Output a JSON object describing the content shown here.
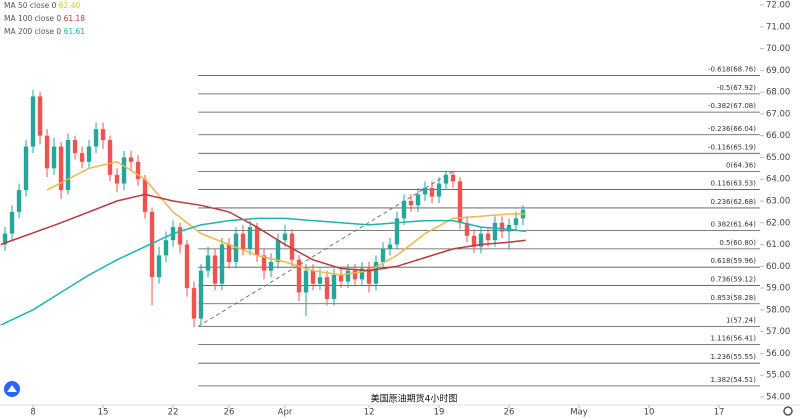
{
  "chart_data": {
    "type": "candlestick",
    "title": "美国原油期货4小时图",
    "xlim": [
      -2.36,
      51.93
    ],
    "ylim": [
      53.63,
      72.23
    ],
    "xticks": [
      {
        "value": 0,
        "label": "8"
      },
      {
        "value": 5,
        "label": "15"
      },
      {
        "value": 10,
        "label": "22"
      },
      {
        "value": 14,
        "label": "26"
      },
      {
        "value": 18,
        "label": "Apr"
      },
      {
        "value": 24,
        "label": "12"
      },
      {
        "value": 29,
        "label": "19"
      },
      {
        "value": 34,
        "label": "26"
      },
      {
        "value": 39,
        "label": "May"
      },
      {
        "value": 44,
        "label": "10"
      },
      {
        "value": 49,
        "label": "17"
      }
    ],
    "yticks": [
      {
        "value": 54,
        "label": "54.00"
      },
      {
        "value": 55,
        "label": "55.00"
      },
      {
        "value": 56,
        "label": "56.00"
      },
      {
        "value": 57,
        "label": "57.00"
      },
      {
        "value": 58,
        "label": "58.00"
      },
      {
        "value": 59,
        "label": "59.00"
      },
      {
        "value": 60,
        "label": "60.00"
      },
      {
        "value": 61,
        "label": "61.00"
      },
      {
        "value": 62,
        "label": "62.00"
      },
      {
        "value": 63,
        "label": "63.00"
      },
      {
        "value": 64,
        "label": "64.00"
      },
      {
        "value": 65,
        "label": "65.00"
      },
      {
        "value": 66,
        "label": "66.00"
      },
      {
        "value": 67,
        "label": "67.00"
      },
      {
        "value": 68,
        "label": "68.00"
      },
      {
        "value": 69,
        "label": "69.00"
      },
      {
        "value": 70,
        "label": "70.00"
      },
      {
        "value": 71,
        "label": "71.00"
      },
      {
        "value": 72,
        "label": "72.00"
      }
    ],
    "up_color": "#26a69a",
    "down_color": "#ef5350",
    "candles": {
      "x": [
        -2,
        -1.5,
        -1,
        -0.5,
        0,
        0.5,
        1,
        1.5,
        2,
        2.5,
        3,
        3.5,
        4,
        4.5,
        5,
        5.5,
        6,
        6.5,
        7,
        7.5,
        8,
        8.5,
        9,
        9.5,
        10,
        10.5,
        11,
        11.5,
        12,
        12.5,
        13,
        13.5,
        14,
        14.5,
        15,
        15.5,
        16,
        16.5,
        17,
        17.5,
        18,
        18.5,
        19,
        19.5,
        20,
        20.5,
        21,
        21.5,
        22,
        22.5,
        23,
        23.5,
        24,
        24.5,
        25,
        25.5,
        26,
        26.5,
        27,
        27.5,
        28,
        28.5,
        29,
        29.5,
        30,
        30.5,
        31,
        31.5,
        32,
        32.5,
        33,
        33.5,
        34,
        34.5,
        35
      ],
      "open": [
        61.0,
        61.5,
        62.5,
        63.5,
        65.5,
        67.8,
        66.0,
        64.5,
        65.5,
        63.5,
        65.8,
        65.2,
        64.8,
        65.5,
        66.3,
        65.8,
        64.2,
        63.8,
        65.0,
        64.8,
        64.0,
        62.5,
        59.5,
        60.5,
        61.2,
        61.8,
        61.0,
        59.0,
        57.6,
        59.8,
        60.5,
        59.2,
        61.0,
        60.2,
        61.5,
        60.8,
        61.8,
        60.5,
        59.8,
        60.2,
        61.2,
        61.5,
        60.3,
        58.8,
        59.8,
        59.2,
        59.5,
        58.5,
        59.6,
        59.3,
        59.8,
        59.4,
        59.9,
        59.2,
        60.2,
        60.8,
        61.0,
        62.2,
        63.0,
        62.8,
        63.3,
        63.6,
        63.2,
        63.8,
        64.2,
        63.9,
        62.0,
        61.4,
        60.9,
        61.5,
        61.2,
        62.0,
        61.6,
        61.9,
        62.2
      ],
      "high": [
        61.8,
        62.8,
        63.8,
        65.8,
        68.1,
        68.0,
        66.3,
        65.9,
        65.7,
        66.1,
        66.0,
        65.5,
        65.8,
        66.6,
        66.6,
        66.0,
        64.5,
        65.3,
        65.3,
        65.1,
        64.2,
        62.7,
        60.9,
        61.6,
        62.1,
        62.0,
        61.2,
        59.3,
        60.1,
        60.9,
        60.8,
        61.3,
        61.3,
        61.8,
        61.9,
        62.1,
        62.0,
        60.8,
        60.6,
        61.5,
        61.9,
        61.7,
        60.5,
        60.1,
        60.1,
        59.9,
        59.8,
        59.9,
        59.9,
        60.1,
        60.1,
        60.2,
        60.2,
        60.5,
        61.1,
        61.3,
        62.5,
        63.3,
        63.3,
        63.6,
        63.9,
        63.9,
        64.1,
        64.4,
        64.4,
        64.1,
        62.3,
        61.7,
        61.8,
        61.8,
        62.3,
        62.3,
        62.2,
        62.5,
        62.8
      ],
      "low": [
        60.7,
        61.2,
        62.2,
        63.2,
        65.2,
        65.6,
        64.1,
        64.2,
        63.1,
        63.3,
        64.9,
        64.5,
        64.5,
        65.2,
        65.4,
        63.9,
        63.4,
        63.5,
        64.4,
        63.7,
        62.2,
        58.2,
        59.2,
        60.2,
        60.9,
        60.6,
        58.6,
        57.2,
        57.3,
        59.5,
        58.9,
        58.9,
        59.9,
        59.9,
        60.5,
        60.5,
        60.2,
        59.4,
        59.5,
        59.9,
        60.9,
        60.0,
        58.4,
        57.7,
        58.9,
        58.9,
        58.2,
        58.2,
        59.0,
        59.0,
        59.1,
        59.1,
        58.8,
        58.9,
        59.9,
        60.5,
        60.8,
        61.9,
        62.5,
        62.5,
        63.0,
        62.9,
        62.9,
        63.5,
        63.6,
        61.7,
        61.1,
        60.6,
        60.6,
        60.9,
        60.9,
        61.3,
        60.8,
        61.6,
        61.9
      ],
      "close": [
        61.5,
        62.5,
        63.5,
        65.5,
        67.8,
        66.0,
        64.5,
        65.5,
        63.5,
        65.8,
        65.2,
        64.8,
        65.5,
        66.3,
        65.8,
        64.2,
        63.8,
        65.0,
        64.8,
        64.0,
        62.5,
        59.5,
        60.5,
        61.2,
        61.8,
        61.0,
        59.0,
        57.6,
        59.8,
        60.5,
        59.2,
        61.0,
        60.2,
        61.5,
        60.8,
        61.8,
        60.5,
        59.8,
        60.2,
        61.2,
        61.5,
        60.3,
        58.8,
        59.8,
        59.2,
        59.5,
        58.5,
        59.6,
        59.3,
        59.8,
        59.4,
        59.9,
        59.2,
        60.2,
        60.8,
        61.0,
        62.2,
        63.0,
        62.8,
        63.3,
        63.6,
        63.2,
        63.8,
        64.2,
        63.9,
        62.0,
        61.4,
        60.9,
        61.5,
        61.2,
        62.0,
        61.6,
        61.9,
        62.2,
        62.6
      ]
    },
    "series": [
      {
        "name": "MA 50 close 0",
        "legend_value": "62.40",
        "color": "#f0b64a",
        "x": [
          1,
          4,
          6,
          8,
          10,
          12,
          14,
          16,
          18,
          20,
          22,
          24,
          26,
          28,
          30,
          32,
          34,
          35.2
        ],
        "values": [
          63.5,
          64.5,
          64.8,
          64.0,
          62.5,
          61.5,
          61.0,
          60.5,
          60.2,
          59.8,
          59.6,
          59.8,
          60.5,
          61.5,
          62.2,
          62.3,
          62.4,
          62.4
        ]
      },
      {
        "name": "MA 100 close 0",
        "legend_value": "61.18",
        "color": "#b83a3f",
        "x": [
          -2.3,
          2,
          6,
          8,
          10,
          12,
          14,
          16,
          18,
          20,
          22,
          24,
          26,
          28,
          30,
          32,
          34,
          35.2
        ],
        "values": [
          61.0,
          62.0,
          63.0,
          63.3,
          63.0,
          62.8,
          62.5,
          61.8,
          61.0,
          60.3,
          59.9,
          59.8,
          60.0,
          60.4,
          60.8,
          61.0,
          61.1,
          61.2
        ]
      },
      {
        "name": "MA 200 close 0",
        "legend_value": "61.61",
        "color": "#1fb3b3",
        "x": [
          -2.3,
          0,
          2,
          4,
          6,
          8,
          10,
          12,
          14,
          16,
          18,
          20,
          22,
          24,
          26,
          28,
          30,
          32,
          34,
          35.2
        ],
        "values": [
          57.3,
          58.0,
          58.8,
          59.6,
          60.3,
          60.9,
          61.5,
          61.9,
          62.1,
          62.2,
          62.2,
          62.1,
          62.0,
          61.9,
          62.0,
          62.1,
          62.1,
          61.8,
          61.7,
          61.6
        ]
      }
    ],
    "fib_levels": [
      {
        "value": 68.76,
        "label": "-0.618(68.76)"
      },
      {
        "value": 67.92,
        "label": "-0.5(67.92)"
      },
      {
        "value": 67.08,
        "label": "-0.382(67.08)"
      },
      {
        "value": 66.04,
        "label": "-0.236(66.04)"
      },
      {
        "value": 65.19,
        "label": "-0.116(65.19)"
      },
      {
        "value": 64.36,
        "label": "0(64.36)"
      },
      {
        "value": 63.53,
        "label": "0.116(63.53)"
      },
      {
        "value": 62.68,
        "label": "0.236(62.68)"
      },
      {
        "value": 61.64,
        "label": "0.382(61.64)"
      },
      {
        "value": 60.8,
        "label": "0.5(60.80)"
      },
      {
        "value": 59.96,
        "label": "0.618(59.96)"
      },
      {
        "value": 59.12,
        "label": "0.736(59.12)"
      },
      {
        "value": 58.28,
        "label": "0.853(58.28)"
      },
      {
        "value": 57.24,
        "label": "1(57.24)"
      },
      {
        "value": 56.41,
        "label": "1.116(56.41)"
      },
      {
        "value": 55.55,
        "label": "1.236(55.55)"
      },
      {
        "value": 54.51,
        "label": "1.382(54.51)"
      }
    ],
    "trend_line": {
      "x": [
        11.8,
        30.0
      ],
      "y": [
        57.24,
        64.36
      ]
    }
  }
}
